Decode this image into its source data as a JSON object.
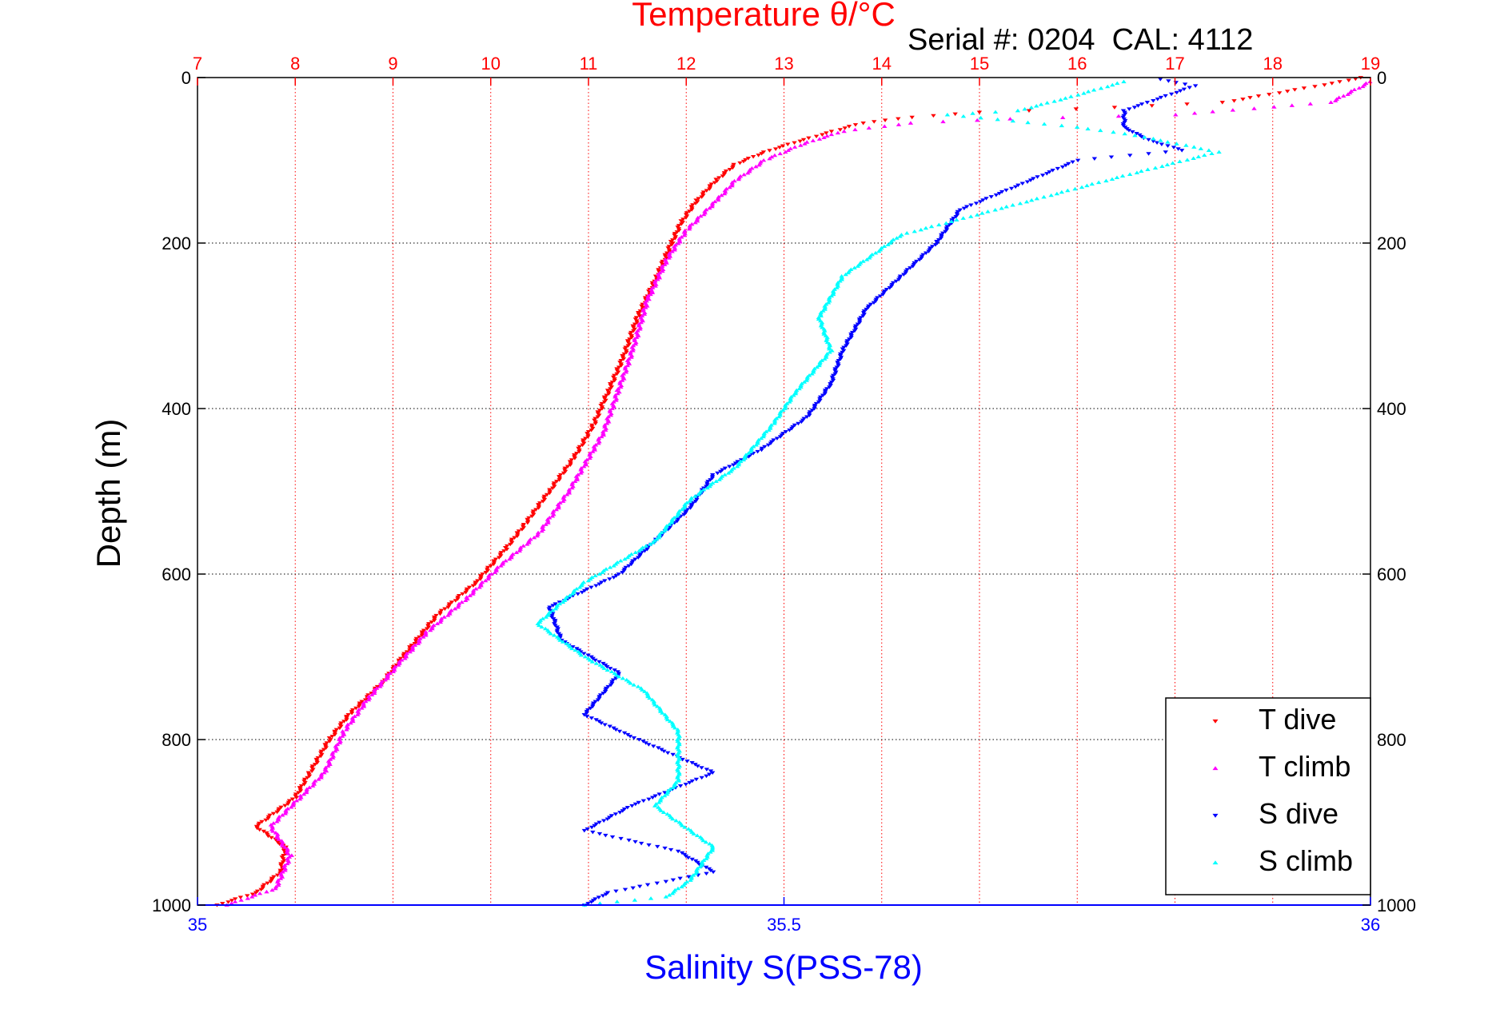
{
  "chart_data": {
    "type": "scatter",
    "title": "Temperature θ/°C",
    "annotation": "Serial #: 0204  CAL: 4112",
    "top_axis": {
      "label": "Temperature θ/°C",
      "lim": [
        7,
        19
      ],
      "ticks": [
        "7",
        "8",
        "9",
        "10",
        "11",
        "12",
        "13",
        "14",
        "15",
        "16",
        "17",
        "18",
        "19"
      ],
      "color": "#ff0000"
    },
    "bottom_axis": {
      "label": "Salinity S(PSS-78)",
      "lim": [
        35,
        36
      ],
      "ticks": [
        "35",
        "35.5",
        "36"
      ],
      "color": "#0000ff"
    },
    "y_axis": {
      "label": "Depth (m)",
      "lim": [
        0,
        1000
      ],
      "reversed": true,
      "ticks_left": [
        "0",
        "200",
        "400",
        "600",
        "800",
        "1000"
      ],
      "ticks_right": [
        "0",
        "200",
        "400",
        "600",
        "800",
        "1000"
      ]
    },
    "grid": true,
    "legend_position": "bottom-right",
    "series": [
      {
        "name": "T dive",
        "axis": "temperature",
        "marker": "triangle-down",
        "color": "#ff0000",
        "points": [
          [
            18.9,
            0
          ],
          [
            18.7,
            5
          ],
          [
            17.5,
            30
          ],
          [
            16.0,
            38
          ],
          [
            15.0,
            42
          ],
          [
            14.3,
            48
          ],
          [
            13.8,
            55
          ],
          [
            13.5,
            65
          ],
          [
            13.2,
            75
          ],
          [
            12.8,
            90
          ],
          [
            12.5,
            105
          ],
          [
            12.3,
            125
          ],
          [
            12.1,
            150
          ],
          [
            11.95,
            175
          ],
          [
            11.85,
            200
          ],
          [
            11.7,
            240
          ],
          [
            11.5,
            290
          ],
          [
            11.35,
            340
          ],
          [
            11.2,
            380
          ],
          [
            11.05,
            420
          ],
          [
            10.85,
            460
          ],
          [
            10.6,
            500
          ],
          [
            10.35,
            540
          ],
          [
            10.15,
            570
          ],
          [
            9.85,
            610
          ],
          [
            9.45,
            650
          ],
          [
            9.1,
            700
          ],
          [
            8.9,
            730
          ],
          [
            8.55,
            770
          ],
          [
            8.35,
            800
          ],
          [
            8.15,
            840
          ],
          [
            8.0,
            870
          ],
          [
            7.6,
            905
          ],
          [
            7.9,
            930
          ],
          [
            7.85,
            960
          ],
          [
            7.6,
            985
          ],
          [
            7.2,
            1000
          ]
        ]
      },
      {
        "name": "T climb",
        "axis": "temperature",
        "marker": "triangle-up",
        "color": "#ff00ff",
        "points": [
          [
            19.0,
            5
          ],
          [
            18.6,
            30
          ],
          [
            17.0,
            45
          ],
          [
            15.3,
            50
          ],
          [
            14.3,
            55
          ],
          [
            13.6,
            65
          ],
          [
            13.2,
            80
          ],
          [
            12.8,
            100
          ],
          [
            12.5,
            125
          ],
          [
            12.3,
            150
          ],
          [
            12.0,
            185
          ],
          [
            11.8,
            220
          ],
          [
            11.6,
            270
          ],
          [
            11.45,
            330
          ],
          [
            11.3,
            380
          ],
          [
            11.15,
            430
          ],
          [
            10.8,
            500
          ],
          [
            10.5,
            550
          ],
          [
            10.1,
            590
          ],
          [
            9.75,
            630
          ],
          [
            9.35,
            670
          ],
          [
            9.05,
            710
          ],
          [
            8.75,
            750
          ],
          [
            8.5,
            790
          ],
          [
            8.3,
            840
          ],
          [
            8.05,
            870
          ],
          [
            7.75,
            905
          ],
          [
            7.95,
            940
          ],
          [
            7.8,
            980
          ],
          [
            7.3,
            1000
          ]
        ]
      },
      {
        "name": "S dive",
        "axis": "salinity",
        "marker": "triangle-down",
        "color": "#0000ff",
        "points": [
          [
            35.82,
            2
          ],
          [
            35.85,
            10
          ],
          [
            35.79,
            40
          ],
          [
            35.79,
            60
          ],
          [
            35.81,
            75
          ],
          [
            35.84,
            88
          ],
          [
            35.75,
            100
          ],
          [
            35.7,
            130
          ],
          [
            35.65,
            160
          ],
          [
            35.63,
            200
          ],
          [
            35.6,
            240
          ],
          [
            35.57,
            280
          ],
          [
            35.55,
            330
          ],
          [
            35.54,
            370
          ],
          [
            35.52,
            410
          ],
          [
            35.48,
            450
          ],
          [
            35.44,
            480
          ],
          [
            35.42,
            520
          ],
          [
            35.39,
            560
          ],
          [
            35.36,
            600
          ],
          [
            35.3,
            640
          ],
          [
            35.31,
            680
          ],
          [
            35.36,
            720
          ],
          [
            35.33,
            770
          ],
          [
            35.36,
            790
          ],
          [
            35.44,
            840
          ],
          [
            35.37,
            880
          ],
          [
            35.33,
            910
          ],
          [
            35.41,
            935
          ],
          [
            35.44,
            960
          ],
          [
            35.35,
            985
          ],
          [
            35.33,
            1000
          ]
        ]
      },
      {
        "name": "S climb",
        "axis": "salinity",
        "marker": "triangle-up",
        "color": "#00ffff",
        "points": [
          [
            35.79,
            5
          ],
          [
            35.74,
            25
          ],
          [
            35.7,
            40
          ],
          [
            35.64,
            45
          ],
          [
            35.75,
            60
          ],
          [
            35.8,
            70
          ],
          [
            35.87,
            90
          ],
          [
            35.8,
            115
          ],
          [
            35.68,
            160
          ],
          [
            35.6,
            190
          ],
          [
            35.55,
            240
          ],
          [
            35.53,
            290
          ],
          [
            35.54,
            330
          ],
          [
            35.51,
            380
          ],
          [
            35.49,
            420
          ],
          [
            35.46,
            470
          ],
          [
            35.42,
            510
          ],
          [
            35.39,
            560
          ],
          [
            35.33,
            610
          ],
          [
            35.29,
            660
          ],
          [
            35.33,
            700
          ],
          [
            35.38,
            740
          ],
          [
            35.41,
            790
          ],
          [
            35.41,
            850
          ],
          [
            35.39,
            880
          ],
          [
            35.44,
            930
          ],
          [
            35.42,
            970
          ],
          [
            35.4,
            990
          ],
          [
            35.33,
            1000
          ]
        ]
      }
    ]
  }
}
